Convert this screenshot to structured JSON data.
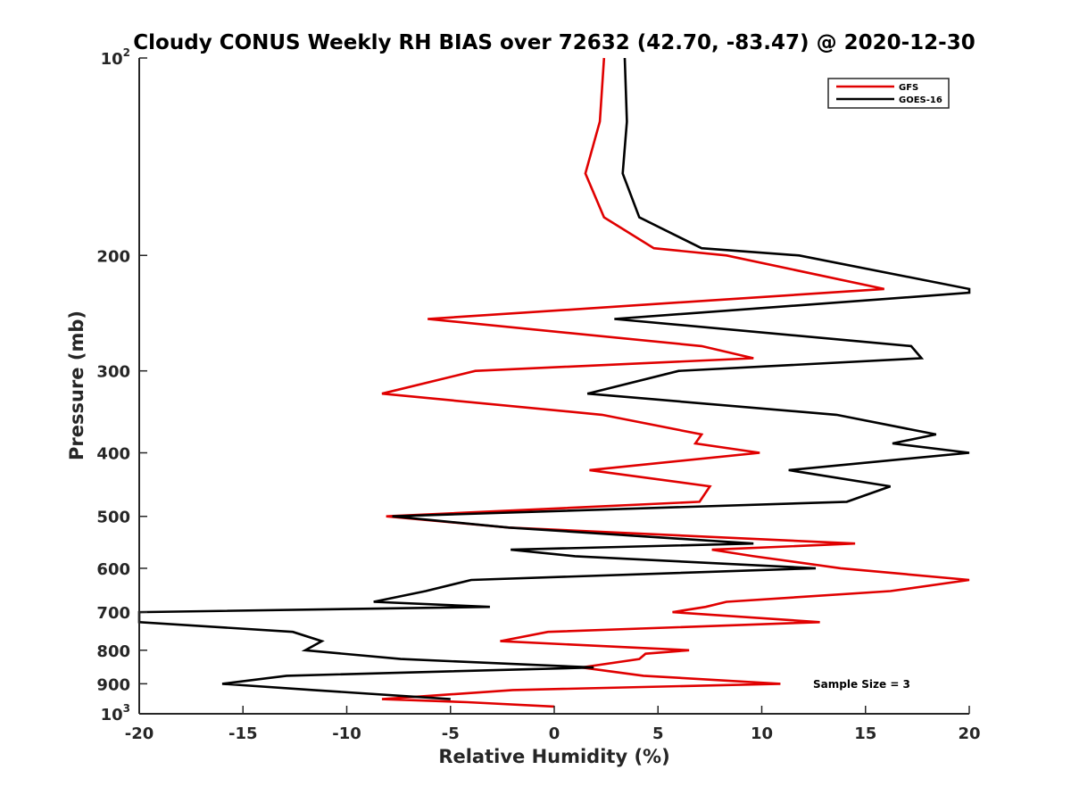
{
  "chart_data": {
    "type": "line",
    "title": "Cloudy CONUS Weekly RH BIAS over 72632 (42.70, -83.47) @ 2020-12-30",
    "xlabel": "Relative Humidity (%)",
    "ylabel": "Pressure (mb)",
    "xlim": [
      -20,
      20
    ],
    "ylim": [
      100,
      1000
    ],
    "yscale": "log",
    "y_reversed": true,
    "xticks": [
      "-20",
      "-15",
      "-10",
      "-5",
      "0",
      "5",
      "10",
      "15",
      "20"
    ],
    "yticks": [
      {
        "value": 100,
        "base": "10",
        "exp": "2"
      },
      {
        "value": 200,
        "label": "200"
      },
      {
        "value": 300,
        "label": "300"
      },
      {
        "value": 400,
        "label": "400"
      },
      {
        "value": 500,
        "label": "500"
      },
      {
        "value": 600,
        "label": "600"
      },
      {
        "value": 700,
        "label": "700"
      },
      {
        "value": 800,
        "label": "800"
      },
      {
        "value": 900,
        "label": "900"
      },
      {
        "value": 1000,
        "base": "10",
        "exp": "3"
      }
    ],
    "grid": false,
    "legend_position": "top-right",
    "annotation": "Sample Size = 3",
    "series": [
      {
        "name": "GFS",
        "color": "#e00000",
        "points": [
          [
            2.4,
            100
          ],
          [
            2.2,
            125
          ],
          [
            1.5,
            150
          ],
          [
            2.4,
            175
          ],
          [
            4.8,
            195
          ],
          [
            8.3,
            200
          ],
          [
            15.9,
            225
          ],
          [
            -6.1,
            250
          ],
          [
            7.1,
            275
          ],
          [
            9.6,
            287
          ],
          [
            -3.8,
            300
          ],
          [
            -8.3,
            325
          ],
          [
            2.3,
            350
          ],
          [
            7.1,
            375
          ],
          [
            6.8,
            387
          ],
          [
            9.9,
            400
          ],
          [
            1.7,
            425
          ],
          [
            7.5,
            450
          ],
          [
            7.0,
            475
          ],
          [
            -8.1,
            500
          ],
          [
            -2.2,
            520
          ],
          [
            14.5,
            550
          ],
          [
            7.6,
            562
          ],
          [
            9.6,
            575
          ],
          [
            13.8,
            600
          ],
          [
            20.0,
            625
          ],
          [
            16.2,
            650
          ],
          [
            8.3,
            675
          ],
          [
            7.3,
            687
          ],
          [
            5.7,
            700
          ],
          [
            12.8,
            725
          ],
          [
            -0.3,
            750
          ],
          [
            -2.6,
            775
          ],
          [
            6.5,
            800
          ],
          [
            4.4,
            810
          ],
          [
            4.1,
            825
          ],
          [
            1.3,
            850
          ],
          [
            4.3,
            875
          ],
          [
            10.9,
            900
          ],
          [
            -2.0,
            920
          ],
          [
            -8.3,
            950
          ],
          [
            -4.2,
            960
          ],
          [
            0.0,
            975
          ]
        ]
      },
      {
        "name": "GOES-16",
        "color": "#000000",
        "points": [
          [
            3.4,
            100
          ],
          [
            3.5,
            125
          ],
          [
            3.3,
            150
          ],
          [
            4.1,
            175
          ],
          [
            7.1,
            195
          ],
          [
            11.8,
            200
          ],
          [
            20.0,
            225
          ],
          [
            20.0,
            228
          ],
          [
            2.9,
            250
          ],
          [
            17.2,
            275
          ],
          [
            17.7,
            287
          ],
          [
            6.0,
            300
          ],
          [
            1.6,
            325
          ],
          [
            13.6,
            350
          ],
          [
            18.4,
            375
          ],
          [
            16.3,
            387
          ],
          [
            20.0,
            400
          ],
          [
            11.3,
            425
          ],
          [
            16.2,
            450
          ],
          [
            14.1,
            475
          ],
          [
            -7.8,
            500
          ],
          [
            -2.2,
            520
          ],
          [
            9.6,
            550
          ],
          [
            -2.1,
            562
          ],
          [
            1.0,
            575
          ],
          [
            12.6,
            600
          ],
          [
            -4.0,
            625
          ],
          [
            -6.2,
            650
          ],
          [
            -8.7,
            675
          ],
          [
            -3.1,
            687
          ],
          [
            -20.0,
            700
          ],
          [
            -20.0,
            725
          ],
          [
            -12.6,
            750
          ],
          [
            -11.2,
            775
          ],
          [
            -12.0,
            800
          ],
          [
            -7.4,
            825
          ],
          [
            1.9,
            850
          ],
          [
            -12.9,
            875
          ],
          [
            -16.0,
            900
          ],
          [
            -11.6,
            920
          ],
          [
            -5.0,
            950
          ]
        ]
      }
    ]
  }
}
